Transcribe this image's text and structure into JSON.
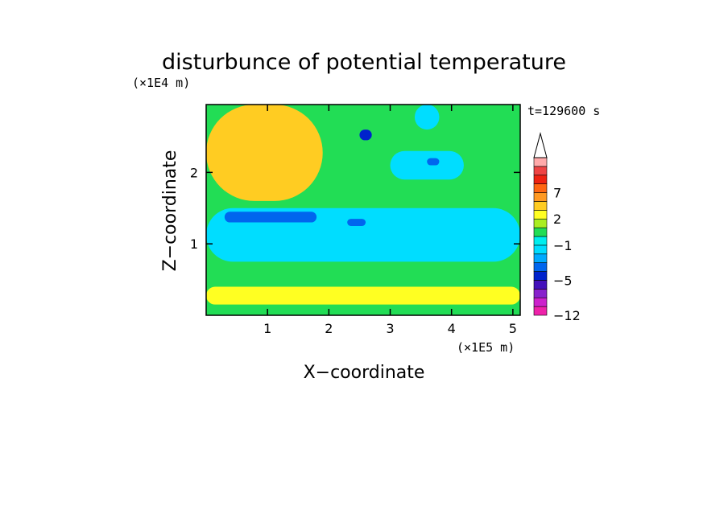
{
  "chart_data": {
    "type": "heatmap",
    "title": "disturbunce of potential temperature",
    "annotation": "t=129600 s",
    "xlabel": "X−coordinate",
    "ylabel": "Z−coordinate",
    "x_scale_label": "(×1E5 m)",
    "y_scale_label": "(×1E4 m)",
    "xlim": [
      0,
      5.12
    ],
    "ylim": [
      0,
      2.95
    ],
    "x_ticks": [
      1,
      2,
      3,
      4,
      5
    ],
    "y_ticks": [
      1,
      2
    ],
    "grid": false,
    "colorbar": {
      "position": "right",
      "levels": [
        -12,
        -10,
        -8,
        -6,
        -5,
        -4,
        -3,
        -2,
        -1,
        0,
        1,
        2,
        3,
        5,
        7,
        9,
        11
      ],
      "labeled_levels": [
        -12,
        -5,
        -1,
        2,
        7
      ],
      "colors": [
        "#ee22aa",
        "#cc22cc",
        "#8822cc",
        "#4411bb",
        "#0022cc",
        "#0066ee",
        "#00aaff",
        "#00ddff",
        "#00eeee",
        "#22dd55",
        "#aaee22",
        "#ffff22",
        "#ffcc22",
        "#ff9922",
        "#ff6611",
        "#ee2211",
        "#ee4444",
        "#ffaaaa"
      ],
      "extend": "max"
    },
    "regions": [
      {
        "x": [
          0,
          5.12
        ],
        "y": [
          0,
          2.95
        ],
        "value": 0.5
      },
      {
        "x": [
          0,
          5.12
        ],
        "y": [
          0.15,
          0.4
        ],
        "value": 2.0
      },
      {
        "x": [
          0,
          5.12
        ],
        "y": [
          0.75,
          1.5
        ],
        "value": -1.5
      },
      {
        "x": [
          0.3,
          1.8
        ],
        "y": [
          1.3,
          1.45
        ],
        "value": -3.5
      },
      {
        "x": [
          2.3,
          2.6
        ],
        "y": [
          1.25,
          1.35
        ],
        "value": -3.5
      },
      {
        "x": [
          0,
          1.9
        ],
        "y": [
          1.6,
          2.95
        ],
        "value": 4.0
      },
      {
        "x": [
          3.0,
          4.2
        ],
        "y": [
          1.9,
          2.3
        ],
        "value": -1.5
      },
      {
        "x": [
          3.6,
          3.8
        ],
        "y": [
          2.1,
          2.2
        ],
        "value": -4.0
      },
      {
        "x": [
          3.4,
          3.8
        ],
        "y": [
          2.6,
          2.95
        ],
        "value": -1.5
      },
      {
        "x": [
          2.5,
          2.7
        ],
        "y": [
          2.45,
          2.6
        ],
        "value": -4.5
      }
    ]
  }
}
